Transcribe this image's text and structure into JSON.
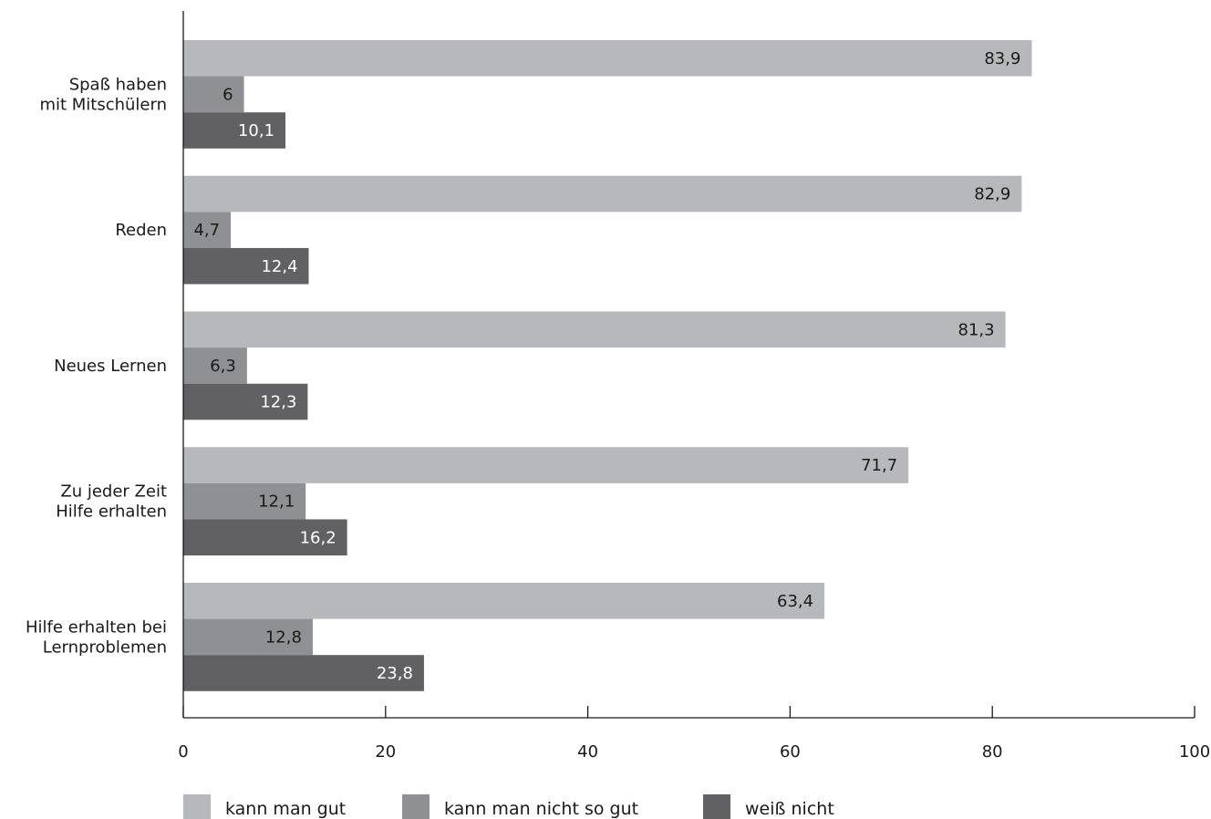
{
  "chart_data": {
    "type": "bar",
    "orientation": "horizontal",
    "categories": [
      [
        "Spaß haben",
        "mit Mitschülern"
      ],
      [
        "Reden"
      ],
      [
        "Neues Lernen"
      ],
      [
        "Zu jeder Zeit",
        "Hilfe erhalten"
      ],
      [
        "Hilfe erhalten bei",
        "Lernproblemen"
      ]
    ],
    "series": [
      {
        "name": "kann man gut",
        "color": "#b7b8bb",
        "label_color": "#1a1a1a",
        "values": [
          83.9,
          82.9,
          81.3,
          71.7,
          63.4
        ]
      },
      {
        "name": "kann man nicht so gut",
        "color": "#8f9093",
        "label_color": "#1a1a1a",
        "values": [
          6,
          4.7,
          6.3,
          12.1,
          12.8
        ]
      },
      {
        "name": "weiß nicht",
        "color": "#616164",
        "label_color": "#ffffff",
        "values": [
          10.1,
          12.4,
          12.3,
          16.2,
          23.8
        ]
      }
    ],
    "value_labels": [
      [
        "83,9",
        "82,9",
        "81,3",
        "71,7",
        "63,4"
      ],
      [
        "6",
        "4,7",
        "6,3",
        "12,1",
        "12,8"
      ],
      [
        "10,1",
        "12,4",
        "12,3",
        "16,2",
        "23,8"
      ]
    ],
    "xlim": [
      0,
      100
    ],
    "xticks": [
      0,
      20,
      40,
      60,
      80,
      100
    ],
    "xtick_labels": [
      "0",
      "20",
      "40",
      "60",
      "80",
      "100"
    ],
    "grid": false,
    "legend_position": "bottom",
    "title": "",
    "xlabel": "",
    "ylabel": ""
  }
}
